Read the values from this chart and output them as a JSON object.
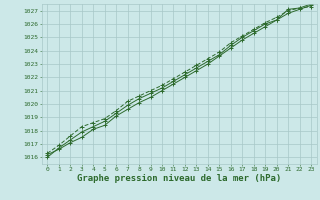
{
  "x": [
    0,
    1,
    2,
    3,
    4,
    5,
    6,
    7,
    8,
    9,
    10,
    11,
    12,
    13,
    14,
    15,
    16,
    17,
    18,
    19,
    20,
    21,
    22,
    23
  ],
  "line1": [
    1016.2,
    1016.6,
    1017.1,
    1017.5,
    1018.1,
    1018.4,
    1019.1,
    1019.6,
    1020.1,
    1020.5,
    1021.0,
    1021.5,
    1022.0,
    1022.5,
    1023.0,
    1023.6,
    1024.2,
    1024.8,
    1025.3,
    1025.8,
    1026.3,
    1026.8,
    1027.1,
    1027.4
  ],
  "line2": [
    1016.0,
    1016.7,
    1017.3,
    1017.9,
    1018.3,
    1018.7,
    1019.3,
    1019.9,
    1020.4,
    1020.8,
    1021.2,
    1021.7,
    1022.2,
    1022.7,
    1023.2,
    1023.7,
    1024.4,
    1025.0,
    1025.5,
    1026.0,
    1026.3,
    1027.1,
    1027.2,
    1027.5
  ],
  "line3": [
    1016.3,
    1016.9,
    1017.6,
    1018.3,
    1018.6,
    1018.9,
    1019.5,
    1020.2,
    1020.6,
    1021.0,
    1021.4,
    1021.9,
    1022.4,
    1022.9,
    1023.4,
    1023.9,
    1024.6,
    1025.1,
    1025.6,
    1026.1,
    1026.5,
    1027.0,
    1027.2,
    1027.3
  ],
  "ylim": [
    1016,
    1027
  ],
  "xlim": [
    0,
    23
  ],
  "yticks": [
    1016,
    1017,
    1018,
    1019,
    1020,
    1021,
    1022,
    1023,
    1024,
    1025,
    1026,
    1027
  ],
  "xticks": [
    0,
    1,
    2,
    3,
    4,
    5,
    6,
    7,
    8,
    9,
    10,
    11,
    12,
    13,
    14,
    15,
    16,
    17,
    18,
    19,
    20,
    21,
    22,
    23
  ],
  "xlabel": "Graphe pression niveau de la mer (hPa)",
  "line_color": "#2d6a2d",
  "bg_color": "#cce8e8",
  "grid_color": "#a8c8c8",
  "text_color": "#2d6a2d",
  "tick_fontsize": 4.5,
  "xlabel_fontsize": 6.5
}
